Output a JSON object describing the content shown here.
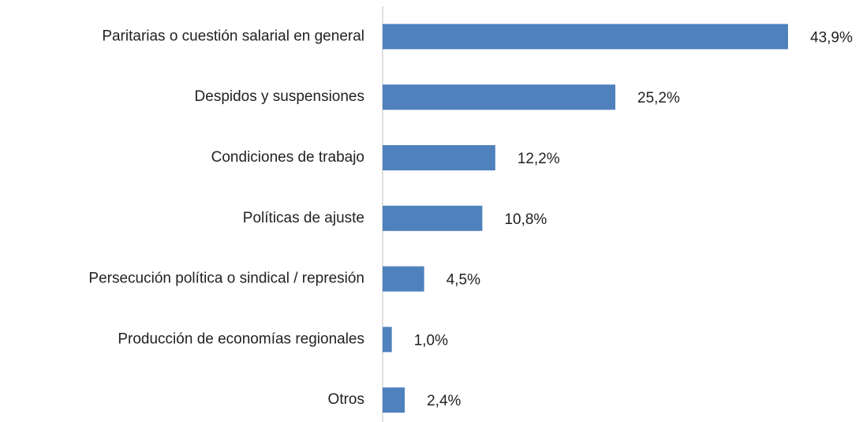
{
  "chart_data": {
    "type": "bar",
    "orientation": "horizontal",
    "categories": [
      "Paritarias o cuestión salarial en general",
      "Despidos y suspensiones",
      "Condiciones de trabajo",
      "Políticas de ajuste",
      "Persecución política o sindical / represión",
      "Producción de economías regionales",
      "Otros"
    ],
    "values": [
      43.9,
      25.2,
      12.2,
      10.8,
      4.5,
      1.0,
      2.4
    ],
    "value_labels": [
      "43,9%",
      "25,2%",
      "12,2%",
      "10,8%",
      "4,5%",
      "1,0%",
      "2,4%"
    ],
    "color": "#4f81bd"
  }
}
